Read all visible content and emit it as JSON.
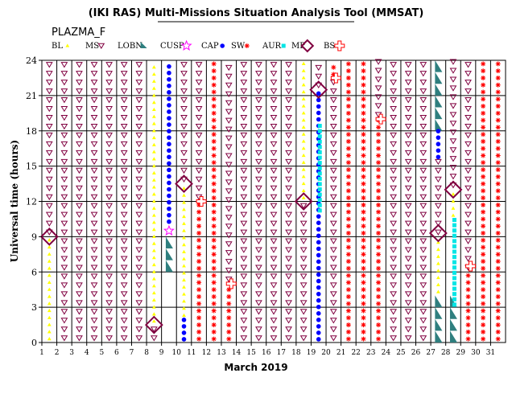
{
  "chart_data": {
    "type": "scatter",
    "title": "(IKI RAS) Multi-Missions Situation Analysis Tool (MMSAT)",
    "subtitle": "PLAZMA_F",
    "xlabel": "March 2019",
    "ylabel": "Universal time (hours)",
    "xlim": [
      1,
      32
    ],
    "ylim": [
      0,
      24
    ],
    "xticks": [
      "1",
      "2",
      "3",
      "4",
      "5",
      "6",
      "7",
      "8",
      "9",
      "10",
      "11",
      "12",
      "13",
      "14",
      "15",
      "16",
      "17",
      "18",
      "19",
      "20",
      "21",
      "22",
      "23",
      "24",
      "25",
      "26",
      "27",
      "28",
      "29",
      "30",
      "31"
    ],
    "yticks": [
      "0",
      "3",
      "6",
      "9",
      "12",
      "15",
      "18",
      "21",
      "24"
    ],
    "grid": true,
    "legend_position": "top",
    "legend": [
      {
        "key": "BL",
        "label": "BL",
        "color": "#ffff00"
      },
      {
        "key": "MS",
        "label": "MS",
        "color": "#800040"
      },
      {
        "key": "LOBN",
        "label": "LOBN",
        "color": "#2f7f7f"
      },
      {
        "key": "CUSP",
        "label": "CUSP",
        "color": "#ff00ff"
      },
      {
        "key": "CAP",
        "label": "CAP",
        "color": "#0000ff"
      },
      {
        "key": "SW",
        "label": "SW",
        "color": "#ff0000"
      },
      {
        "key": "AUR",
        "label": "AUR",
        "color": "#00e5e5"
      },
      {
        "key": "MP",
        "label": "MP",
        "color": "#800040"
      },
      {
        "key": "BS",
        "label": "BS",
        "color": "#ff0000"
      }
    ],
    "regions": [
      {
        "day": 1,
        "region": "BL",
        "from": 0,
        "to": 9
      },
      {
        "day": 1,
        "region": "MS",
        "from": 9,
        "to": 24
      },
      {
        "day": 2,
        "region": "MS",
        "from": 0,
        "to": 24
      },
      {
        "day": 3,
        "region": "MS",
        "from": 0,
        "to": 24
      },
      {
        "day": 4,
        "region": "MS",
        "from": 0,
        "to": 24
      },
      {
        "day": 5,
        "region": "MS",
        "from": 0,
        "to": 24
      },
      {
        "day": 6,
        "region": "MS",
        "from": 0,
        "to": 24
      },
      {
        "day": 7,
        "region": "MS",
        "from": 0,
        "to": 24
      },
      {
        "day": 8,
        "region": "MS",
        "from": 0,
        "to": 1.5
      },
      {
        "day": 8,
        "region": "BL",
        "from": 1.5,
        "to": 24
      },
      {
        "day": 9,
        "region": "LOBN",
        "from": 6,
        "to": 9
      },
      {
        "day": 9,
        "region": "CUSP",
        "from": 9,
        "to": 10
      },
      {
        "day": 9,
        "region": "CAP",
        "from": 10,
        "to": 24
      },
      {
        "day": 10,
        "region": "CAP",
        "from": 0,
        "to": 2
      },
      {
        "day": 10,
        "region": "BL",
        "from": 2,
        "to": 13.5
      },
      {
        "day": 10,
        "region": "MS",
        "from": 13.5,
        "to": 24
      },
      {
        "day": 11,
        "region": "SW",
        "from": 0,
        "to": 12
      },
      {
        "day": 11,
        "region": "MS",
        "from": 12,
        "to": 24
      },
      {
        "day": 12,
        "region": "SW",
        "from": 0,
        "to": 24
      },
      {
        "day": 13,
        "region": "SW",
        "from": 0,
        "to": 5
      },
      {
        "day": 13,
        "region": "MS",
        "from": 5,
        "to": 24
      },
      {
        "day": 14,
        "region": "MS",
        "from": 0,
        "to": 24
      },
      {
        "day": 15,
        "region": "MS",
        "from": 0,
        "to": 24
      },
      {
        "day": 16,
        "region": "MS",
        "from": 0,
        "to": 24
      },
      {
        "day": 17,
        "region": "MS",
        "from": 0,
        "to": 24
      },
      {
        "day": 18,
        "region": "MS",
        "from": 0,
        "to": 12
      },
      {
        "day": 18,
        "region": "BL",
        "from": 12,
        "to": 24
      },
      {
        "day": 19,
        "region": "CAP",
        "from": 0,
        "to": 21.5
      },
      {
        "day": 19,
        "region": "AUR",
        "from": 11,
        "to": 18.5
      },
      {
        "day": 19,
        "region": "MS",
        "from": 21.5,
        "to": 24
      },
      {
        "day": 20,
        "region": "MS",
        "from": 0,
        "to": 22.5
      },
      {
        "day": 20,
        "region": "SW",
        "from": 22.5,
        "to": 24
      },
      {
        "day": 21,
        "region": "SW",
        "from": 0,
        "to": 24
      },
      {
        "day": 22,
        "region": "SW",
        "from": 0,
        "to": 24
      },
      {
        "day": 23,
        "region": "SW",
        "from": 0,
        "to": 19
      },
      {
        "day": 23,
        "region": "MS",
        "from": 19,
        "to": 24
      },
      {
        "day": 24,
        "region": "MS",
        "from": 0,
        "to": 24
      },
      {
        "day": 25,
        "region": "MS",
        "from": 0,
        "to": 24
      },
      {
        "day": 26,
        "region": "MS",
        "from": 0,
        "to": 24
      },
      {
        "day": 27,
        "region": "LOBN",
        "from": 0,
        "to": 4
      },
      {
        "day": 27,
        "region": "BL",
        "from": 4,
        "to": 9
      },
      {
        "day": 27,
        "region": "MS",
        "from": 9,
        "to": 15.5
      },
      {
        "day": 27,
        "region": "CAP",
        "from": 15.5,
        "to": 18
      },
      {
        "day": 27,
        "region": "LOBN",
        "from": 18,
        "to": 24
      },
      {
        "day": 28,
        "region": "LOBN",
        "from": 0,
        "to": 4
      },
      {
        "day": 28,
        "region": "AUR",
        "from": 3,
        "to": 10.5
      },
      {
        "day": 28,
        "region": "BL",
        "from": 10.5,
        "to": 13
      },
      {
        "day": 28,
        "region": "MS",
        "from": 13,
        "to": 24
      },
      {
        "day": 29,
        "region": "SW",
        "from": 0,
        "to": 6
      },
      {
        "day": 29,
        "region": "MS",
        "from": 6,
        "to": 24
      },
      {
        "day": 30,
        "region": "SW",
        "from": 0,
        "to": 24
      },
      {
        "day": 31,
        "region": "SW",
        "from": 0,
        "to": 24
      }
    ],
    "crossings": [
      {
        "type": "MP",
        "day": 1,
        "time": 9
      },
      {
        "type": "MP",
        "day": 8,
        "time": 1.5
      },
      {
        "type": "MP",
        "day": 10,
        "time": 13.5
      },
      {
        "type": "MP",
        "day": 18,
        "time": 12
      },
      {
        "type": "MP",
        "day": 19,
        "time": 21.5
      },
      {
        "type": "MP",
        "day": 27,
        "time": 9.3
      },
      {
        "type": "MP",
        "day": 28,
        "time": 13
      },
      {
        "type": "BS",
        "day": 11,
        "time": 12
      },
      {
        "type": "BS",
        "day": 13,
        "time": 5
      },
      {
        "type": "BS",
        "day": 20,
        "time": 22.5
      },
      {
        "type": "BS",
        "day": 23,
        "time": 19
      },
      {
        "type": "BS",
        "day": 29,
        "time": 6.5
      }
    ]
  }
}
